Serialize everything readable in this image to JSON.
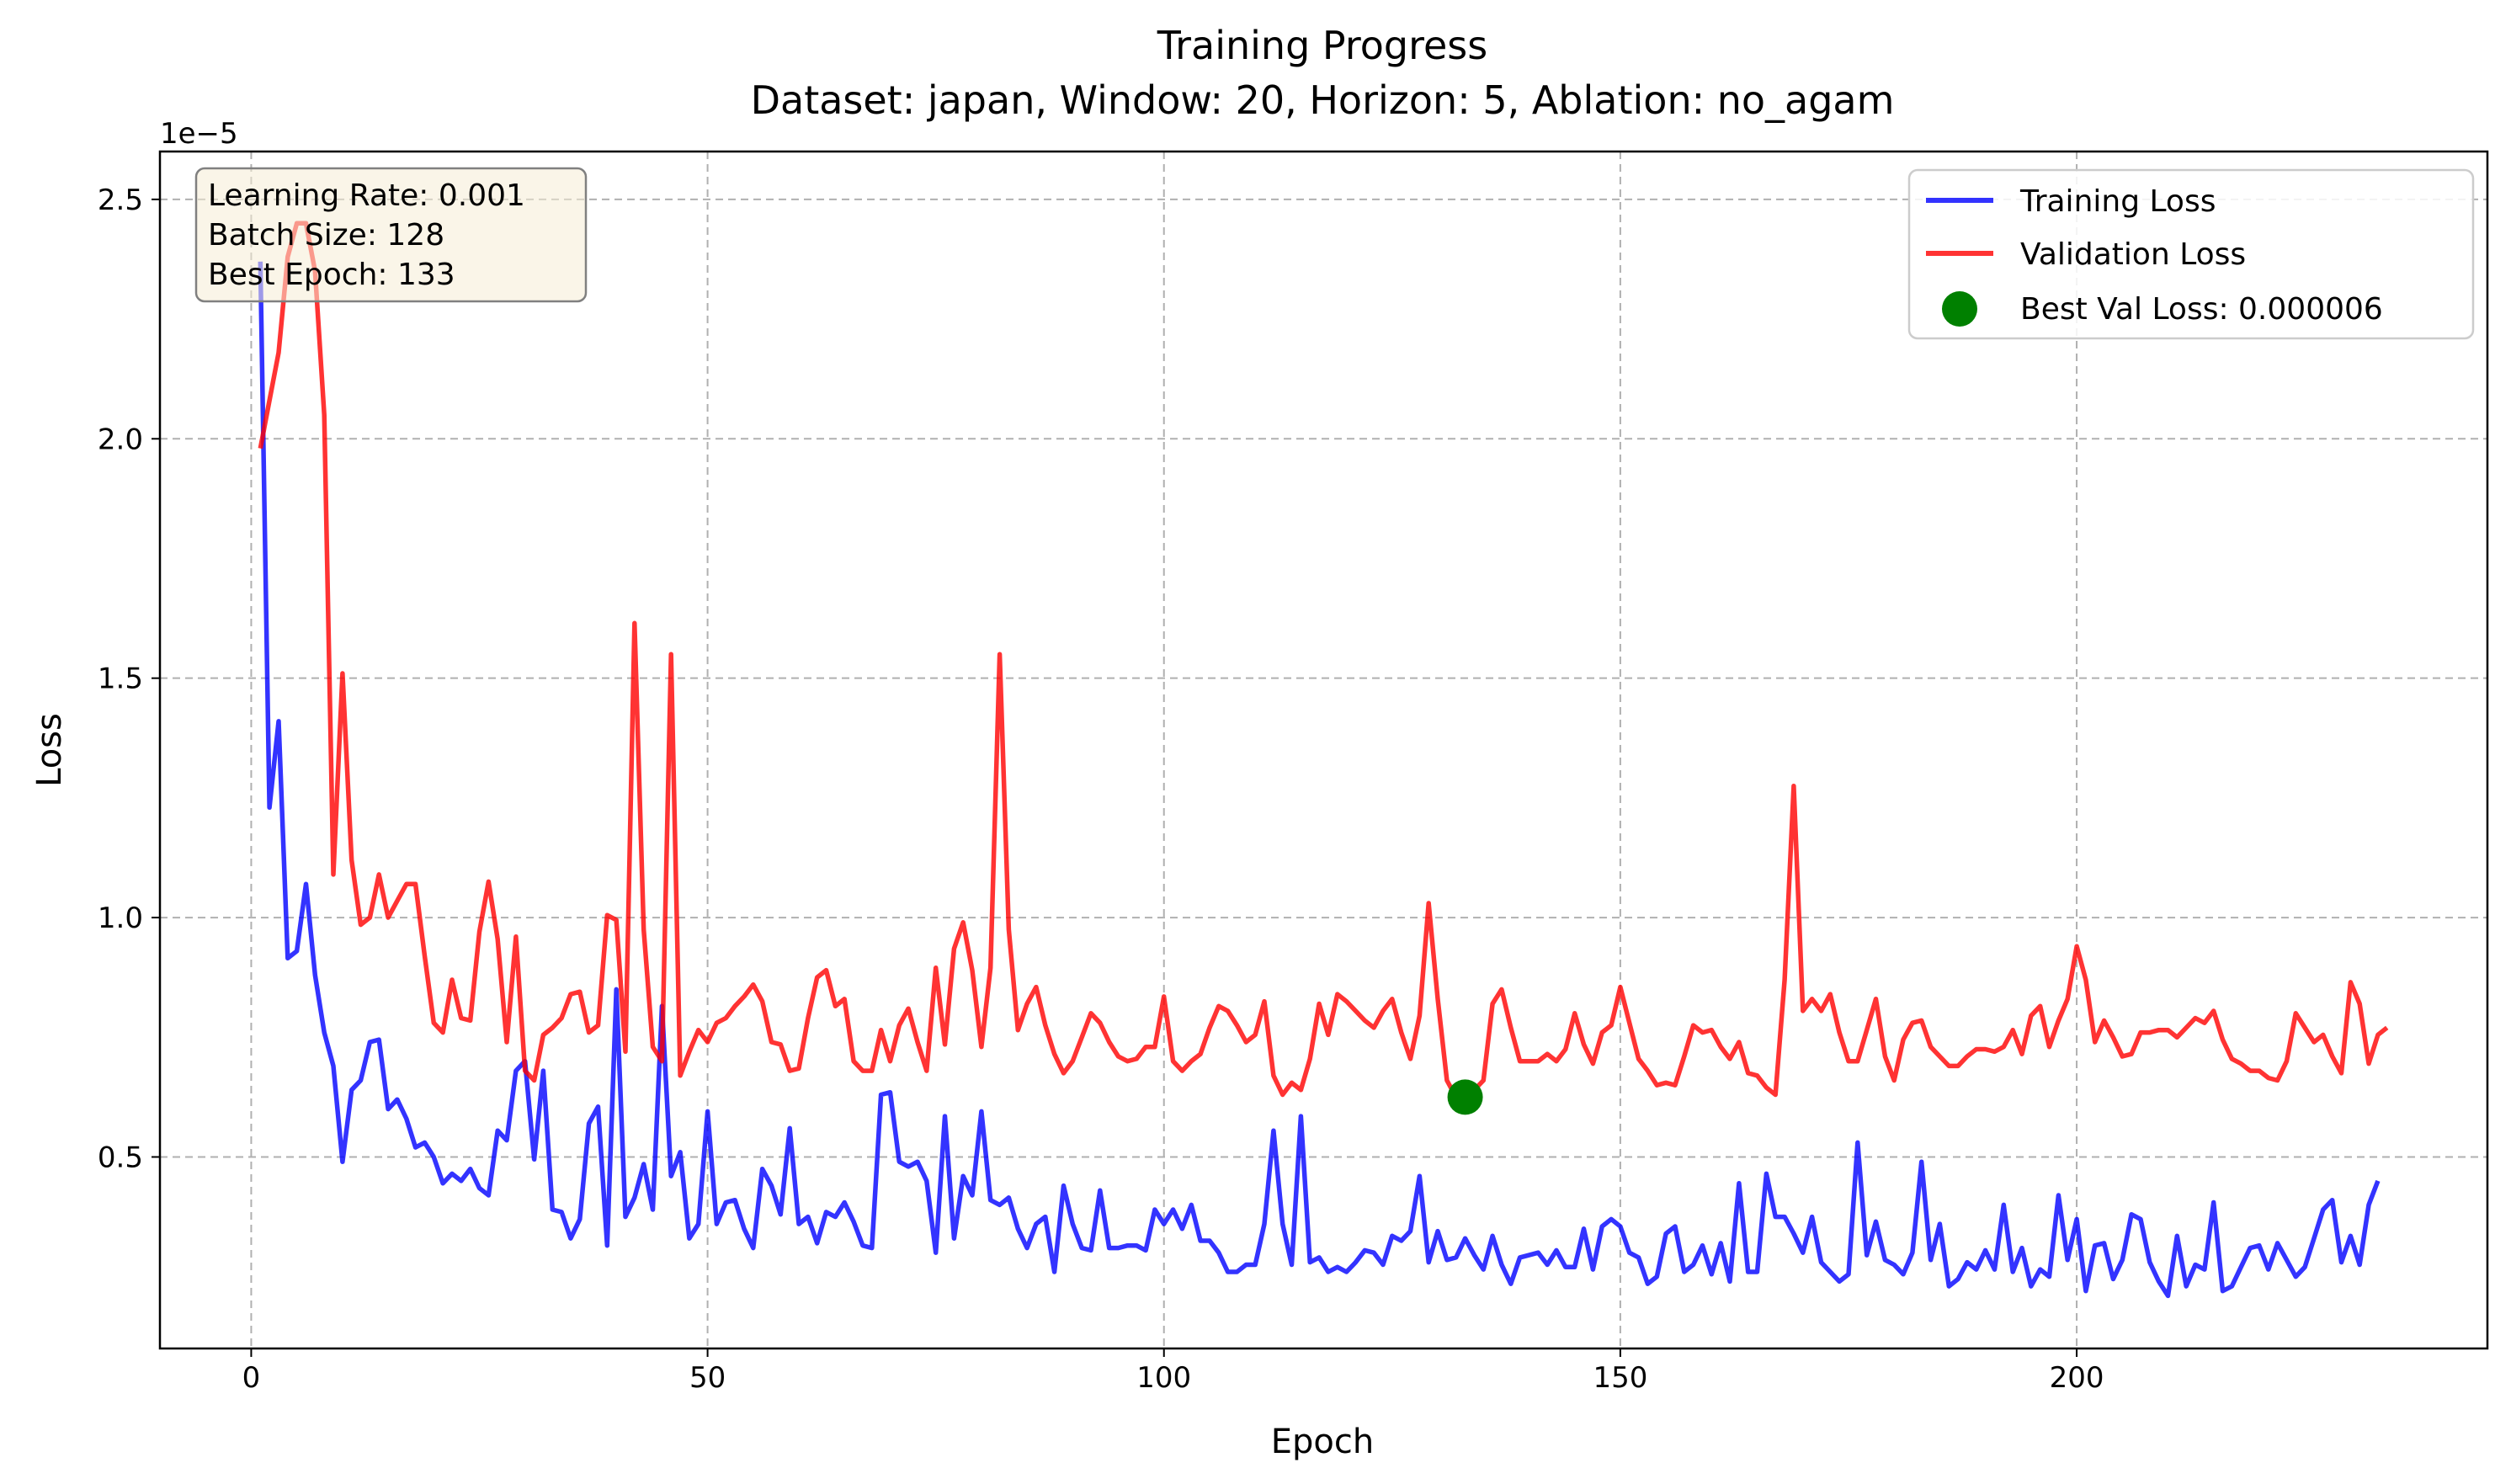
{
  "chart_data": {
    "type": "line",
    "title": "Training Progress",
    "subtitle": "Dataset: japan, Window: 20, Horizon: 5, Ablation: no_agam",
    "xlabel": "Epoch",
    "ylabel": "Loss",
    "y_offset_label": "1e−5",
    "xlim": [
      -10,
      245
    ],
    "ylim": [
      1e-06,
      2.6e-05
    ],
    "x_ticks": [
      0,
      50,
      100,
      150,
      200
    ],
    "x_tick_labels": [
      "0",
      "50",
      "100",
      "150",
      "200"
    ],
    "y_ticks": [
      5e-06,
      1e-05,
      1.5e-05,
      2e-05,
      2.5e-05
    ],
    "y_tick_labels": [
      "0.5",
      "1.0",
      "1.5",
      "2.0",
      "2.5"
    ],
    "grid": true,
    "legend_position": "top-right",
    "info_box": [
      "Learning Rate: 0.001",
      "Batch Size: 128",
      "Best Epoch: 133"
    ],
    "best_point": {
      "label": "Best Val Loss: 0.000006",
      "x": 133,
      "y": 6.25e-06,
      "color": "#008000"
    },
    "series": [
      {
        "name": "Training Loss",
        "color": "#0000ff",
        "x_start": 1,
        "scale": 1e-06,
        "values": [
          23.7,
          12.3,
          14.1,
          9.15,
          9.3,
          10.7,
          8.8,
          7.6,
          6.9,
          4.9,
          6.4,
          6.6,
          7.4,
          7.45,
          6.0,
          6.2,
          5.8,
          5.2,
          5.3,
          5.0,
          4.45,
          4.65,
          4.5,
          4.75,
          4.35,
          4.2,
          5.55,
          5.35,
          6.8,
          7.0,
          4.95,
          6.8,
          3.9,
          3.85,
          3.3,
          3.7,
          5.7,
          6.05,
          3.15,
          8.5,
          3.75,
          4.15,
          4.85,
          3.9,
          8.15,
          4.6,
          5.1,
          3.3,
          3.6,
          5.95,
          3.6,
          4.05,
          4.1,
          3.5,
          3.1,
          4.75,
          4.4,
          3.8,
          5.6,
          3.6,
          3.75,
          3.2,
          3.85,
          3.75,
          4.05,
          3.65,
          3.15,
          3.1,
          6.3,
          6.35,
          4.9,
          4.8,
          4.9,
          4.5,
          3.0,
          5.85,
          3.3,
          4.6,
          4.2,
          5.95,
          4.1,
          4.0,
          4.15,
          3.5,
          3.1,
          3.6,
          3.75,
          2.6,
          4.4,
          3.6,
          3.1,
          3.05,
          4.3,
          3.1,
          3.1,
          3.15,
          3.15,
          3.05,
          3.9,
          3.6,
          3.9,
          3.5,
          4.0,
          3.25,
          3.25,
          3.0,
          2.6,
          2.6,
          2.75,
          2.75,
          3.6,
          5.55,
          3.6,
          2.75,
          5.85,
          2.8,
          2.9,
          2.6,
          2.7,
          2.6,
          2.8,
          3.05,
          3.0,
          2.75,
          3.35,
          3.25,
          3.45,
          4.6,
          2.8,
          3.45,
          2.85,
          2.9,
          3.3,
          2.95,
          2.65,
          3.35,
          2.75,
          2.35,
          2.9,
          2.95,
          3.0,
          2.75,
          3.05,
          2.7,
          2.7,
          3.5,
          2.65,
          3.55,
          3.7,
          3.55,
          3.0,
          2.9,
          2.35,
          2.5,
          3.4,
          3.55,
          2.6,
          2.75,
          3.15,
          2.55,
          3.2,
          2.4,
          4.45,
          2.6,
          2.6,
          4.65,
          3.75,
          3.75,
          3.4,
          3.0,
          3.75,
          2.8,
          2.6,
          2.4,
          2.55,
          5.3,
          2.95,
          3.65,
          2.85,
          2.75,
          2.55,
          3.0,
          4.9,
          2.85,
          3.6,
          2.3,
          2.45,
          2.8,
          2.65,
          3.05,
          2.65,
          4.0,
          2.6,
          3.1,
          2.3,
          2.65,
          2.5,
          4.2,
          2.85,
          3.7,
          2.2,
          3.15,
          3.2,
          2.45,
          2.85,
          3.8,
          3.7,
          2.8,
          2.4,
          2.1,
          3.35,
          2.3,
          2.75,
          2.65,
          4.05,
          2.2,
          2.3,
          2.7,
          3.1,
          3.15,
          2.65,
          3.2,
          2.85,
          2.5,
          2.7,
          3.3,
          3.9,
          4.1,
          2.8,
          3.35,
          2.75,
          4.0,
          4.5
        ]
      },
      {
        "name": "Validation Loss",
        "color": "#ff0000",
        "x_start": 1,
        "scale": 1e-06,
        "values": [
          19.8,
          20.8,
          21.8,
          23.8,
          24.5,
          24.5,
          23.5,
          20.5,
          10.9,
          15.1,
          11.2,
          9.85,
          10.0,
          10.9,
          10.0,
          10.35,
          10.7,
          10.7,
          9.2,
          7.8,
          7.6,
          8.7,
          7.9,
          7.85,
          9.7,
          10.75,
          9.55,
          7.4,
          9.6,
          6.8,
          6.6,
          7.55,
          7.7,
          7.9,
          8.4,
          8.45,
          7.6,
          7.75,
          10.05,
          9.95,
          7.2,
          16.15,
          9.75,
          7.3,
          7.0,
          15.5,
          6.7,
          7.2,
          7.65,
          7.4,
          7.8,
          7.9,
          8.15,
          8.35,
          8.6,
          8.25,
          7.4,
          7.35,
          6.8,
          6.85,
          7.9,
          8.75,
          8.9,
          8.15,
          8.3,
          7.0,
          6.8,
          6.8,
          7.65,
          7.0,
          7.75,
          8.1,
          7.4,
          6.8,
          8.95,
          7.35,
          9.35,
          9.9,
          8.9,
          7.3,
          8.95,
          15.5,
          9.75,
          7.65,
          8.2,
          8.55,
          7.75,
          7.15,
          6.75,
          7.0,
          7.5,
          8.0,
          7.8,
          7.4,
          7.1,
          7.0,
          7.05,
          7.3,
          7.3,
          8.35,
          7.0,
          6.8,
          7.0,
          7.15,
          7.7,
          8.15,
          8.05,
          7.75,
          7.4,
          7.55,
          8.25,
          6.7,
          6.3,
          6.55,
          6.4,
          7.05,
          8.2,
          7.55,
          8.4,
          8.25,
          8.05,
          7.85,
          7.7,
          8.05,
          8.3,
          7.6,
          7.05,
          7.95,
          10.3,
          8.3,
          6.6,
          6.25,
          6.3,
          6.4,
          6.6,
          8.2,
          8.5,
          7.7,
          7.0,
          7.0,
          7.0,
          7.15,
          7.0,
          7.25,
          8.0,
          7.35,
          6.95,
          7.6,
          7.75,
          8.55,
          7.8,
          7.05,
          6.8,
          6.5,
          6.55,
          6.5,
          7.1,
          7.75,
          7.6,
          7.65,
          7.3,
          7.05,
          7.4,
          6.75,
          6.7,
          6.45,
          6.3,
          8.7,
          12.75,
          8.05,
          8.3,
          8.05,
          8.4,
          7.6,
          7.0,
          7.0,
          7.65,
          8.3,
          7.1,
          6.6,
          7.45,
          7.8,
          7.85,
          7.3,
          7.1,
          6.9,
          6.9,
          7.1,
          7.25,
          7.25,
          7.2,
          7.3,
          7.65,
          7.15,
          7.95,
          8.15,
          7.3,
          7.85,
          8.3,
          9.4,
          8.7,
          7.4,
          7.85,
          7.5,
          7.1,
          7.15,
          7.6,
          7.6,
          7.65,
          7.65,
          7.5,
          7.7,
          7.9,
          7.8,
          8.05,
          7.45,
          7.05,
          6.95,
          6.8,
          6.8,
          6.65,
          6.6,
          7.0,
          8.0,
          7.7,
          7.4,
          7.55,
          7.1,
          6.75,
          8.65,
          8.2,
          6.95,
          7.55,
          7.7
        ]
      }
    ]
  }
}
